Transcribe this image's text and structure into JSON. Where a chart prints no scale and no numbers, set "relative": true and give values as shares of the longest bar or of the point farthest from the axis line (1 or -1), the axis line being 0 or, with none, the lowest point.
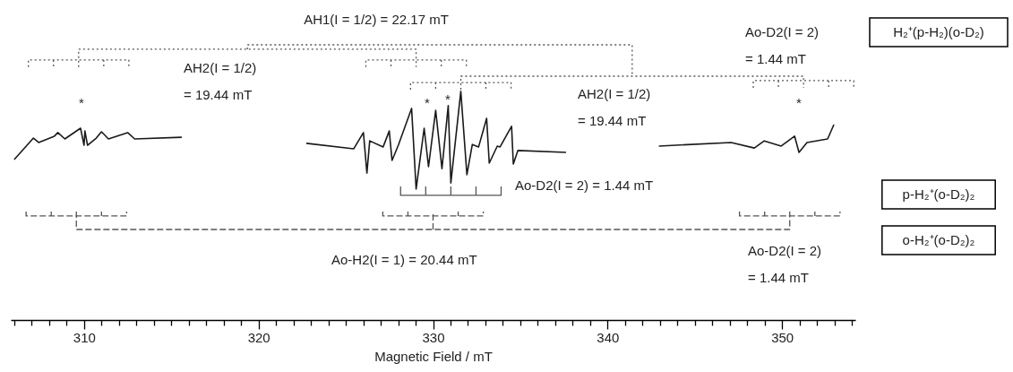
{
  "chart_data": {
    "type": "line",
    "relative": true,
    "xlabel": "Magnetic Field / mT",
    "xlim": [
      305.8,
      354.2
    ],
    "xticks": [
      {
        "value": 306,
        "label": null
      },
      {
        "value": 307,
        "label": null
      },
      {
        "value": 308,
        "label": null
      },
      {
        "value": 309,
        "label": null
      },
      310,
      {
        "value": 311,
        "label": null
      },
      {
        "value": 312,
        "label": null
      },
      {
        "value": 313,
        "label": null
      },
      {
        "value": 314,
        "label": null
      },
      {
        "value": 315,
        "label": null
      },
      {
        "value": 316,
        "label": null
      },
      {
        "value": 317,
        "label": null
      },
      {
        "value": 318,
        "label": null
      },
      {
        "value": 319,
        "label": null
      },
      320,
      {
        "value": 321,
        "label": null
      },
      {
        "value": 322,
        "label": null
      },
      {
        "value": 323,
        "label": null
      },
      {
        "value": 324,
        "label": null
      },
      {
        "value": 325,
        "label": null
      },
      {
        "value": 326,
        "label": null
      },
      {
        "value": 327,
        "label": null
      },
      {
        "value": 328,
        "label": null
      },
      {
        "value": 329,
        "label": null
      },
      330,
      {
        "value": 331,
        "label": null
      },
      {
        "value": 332,
        "label": null
      },
      {
        "value": 333,
        "label": null
      },
      {
        "value": 334,
        "label": null
      },
      {
        "value": 335,
        "label": null
      },
      {
        "value": 336,
        "label": null
      },
      {
        "value": 337,
        "label": null
      },
      {
        "value": 338,
        "label": null
      },
      {
        "value": 339,
        "label": null
      },
      340,
      {
        "value": 341,
        "label": null
      },
      {
        "value": 342,
        "label": null
      },
      {
        "value": 343,
        "label": null
      },
      {
        "value": 344,
        "label": null
      },
      {
        "value": 345,
        "label": null
      },
      {
        "value": 346,
        "label": null
      },
      {
        "value": 347,
        "label": null
      },
      {
        "value": 348,
        "label": null
      },
      {
        "value": 349,
        "label": null
      },
      350,
      {
        "value": 351,
        "label": null
      },
      {
        "value": 352,
        "label": null
      },
      {
        "value": 353,
        "label": null
      },
      {
        "value": 354,
        "label": null
      }
    ],
    "annotations": [
      "AH1(I = 1/2) = 22.17 mT",
      "AH2(I = 1/2)\n= 19.44 mT",
      "AH2(I = 1/2)\n= 19.44 mT",
      "Ao-D2(I = 2)\n= 1.44 mT",
      "Ao-D2(I = 2) = 1.44 mT",
      "Ao-H2(I = 1) = 20.44 mT",
      "Ao-D2(I = 2)\n= 1.44 mT",
      "*",
      "*",
      "*",
      "*"
    ],
    "series": [
      {
        "color": "#1a1a1a",
        "line_style": "solid",
        "x": [
          306.0,
          307.1,
          307.4,
          308.3,
          308.5,
          308.9,
          309.8,
          310.0,
          310.05,
          310.2,
          310.7,
          311.0,
          311.4,
          312.5,
          312.9,
          315.6,
          null,
          322.74,
          325.45,
          326.01,
          326.21,
          326.37,
          327.14,
          327.49,
          327.65,
          328.01,
          328.77,
          329.03,
          329.49,
          329.74,
          330.15,
          330.51,
          330.87,
          331.02,
          331.59,
          331.94,
          332.25,
          332.61,
          333.07,
          333.22,
          333.68,
          333.84,
          334.5,
          334.6,
          334.86,
          337.62,
          null,
          342.94,
          347.08,
          348.41,
          348.98,
          349.95,
          350.72,
          350.97,
          351.43,
          352.61,
          352.97
        ],
        "values": [
          0.583,
          0.661,
          0.645,
          0.668,
          0.681,
          0.658,
          0.697,
          0.635,
          0.687,
          0.635,
          0.661,
          0.684,
          0.658,
          0.681,
          0.658,
          0.664,
          null,
          0.642,
          0.622,
          0.681,
          0.534,
          0.651,
          0.629,
          0.687,
          0.58,
          0.635,
          0.769,
          0.476,
          0.697,
          0.557,
          0.762,
          0.55,
          0.779,
          0.498,
          0.831,
          0.528,
          0.638,
          0.629,
          0.733,
          0.57,
          0.632,
          0.629,
          0.704,
          0.567,
          0.616,
          0.609,
          null,
          0.632,
          0.645,
          0.625,
          0.651,
          0.632,
          0.668,
          0.609,
          0.645,
          0.658,
          0.71
        ]
      },
      {
        "name": "H₂⁺(p-H₂)(o-D₂)",
        "color": "#555555",
        "line_style": "dotted",
        "x": [
          319.36,
          319.36,
          341.41,
          341.41,
          null,
          309.69,
          309.69,
          329.03,
          329.03,
          null,
          331.59,
          331.59,
          351.23,
          351.23,
          null,
          306.81,
          306.81,
          312.57,
          312.57,
          null,
          308.25,
          308.25,
          null,
          311.13,
          311.13,
          null,
          326.15,
          326.15,
          331.91,
          331.91,
          null,
          327.59,
          327.59,
          null,
          330.47,
          330.47,
          null,
          328.71,
          328.71,
          334.47,
          334.47,
          null,
          330.15,
          330.15,
          null,
          333.03,
          333.03,
          null,
          348.35,
          348.35,
          354.11,
          354.11,
          null,
          349.79,
          349.79,
          null,
          352.67,
          352.67
        ],
        "values": [
          0.984,
          1.0,
          1.0,
          0.886,
          null,
          0.919,
          0.984,
          0.984,
          0.919,
          null,
          0.837,
          0.886,
          0.886,
          0.844,
          null,
          0.919,
          0.945,
          0.945,
          0.919,
          null,
          0.945,
          0.919,
          null,
          0.945,
          0.919,
          null,
          0.919,
          0.945,
          0.945,
          0.919,
          null,
          0.945,
          0.919,
          null,
          0.945,
          0.919,
          null,
          0.837,
          0.863,
          0.863,
          0.837,
          null,
          0.863,
          0.837,
          null,
          0.863,
          0.837,
          null,
          0.844,
          0.87,
          0.87,
          0.844,
          null,
          0.87,
          0.844,
          null,
          0.87,
          0.844
        ]
      },
      {
        "name": "p-H₂⁺(o-D₂)₂",
        "color": "#555555",
        "line_style": "solid",
        "x": [
          328.14,
          328.14,
          333.9,
          333.9,
          null,
          329.58,
          329.58,
          null,
          331.02,
          331.02,
          null,
          332.46,
          332.46
        ],
        "values": [
          0.485,
          0.453,
          0.453,
          0.485,
          null,
          0.453,
          0.485,
          null,
          0.453,
          0.485,
          null,
          0.453,
          0.485
        ]
      },
      {
        "name": "o-H₂⁺(o-D₂)₂",
        "color": "#555555",
        "line_style": "dashed",
        "x": [
          309.56,
          309.56,
          350.44,
          350.44,
          null,
          330.0,
          330.0,
          null,
          306.68,
          306.68,
          312.44,
          312.44,
          null,
          308.12,
          308.12,
          null,
          311.0,
          311.0,
          null,
          327.12,
          327.12,
          332.88,
          332.88,
          null,
          328.56,
          328.56,
          null,
          331.44,
          331.44,
          null,
          347.56,
          347.56,
          353.32,
          353.32,
          null,
          349.0,
          349.0,
          null,
          351.88,
          351.88
        ],
        "values": [
          0.394,
          0.329,
          0.329,
          0.394,
          null,
          0.329,
          0.394,
          null,
          0.394,
          0.378,
          0.378,
          0.394,
          null,
          0.378,
          0.394,
          null,
          0.378,
          0.394,
          null,
          0.394,
          0.378,
          0.378,
          0.394,
          null,
          0.378,
          0.394,
          null,
          0.378,
          0.394,
          null,
          0.394,
          0.378,
          0.378,
          0.394,
          null,
          0.378,
          0.394,
          null,
          0.378,
          0.394
        ]
      }
    ]
  }
}
